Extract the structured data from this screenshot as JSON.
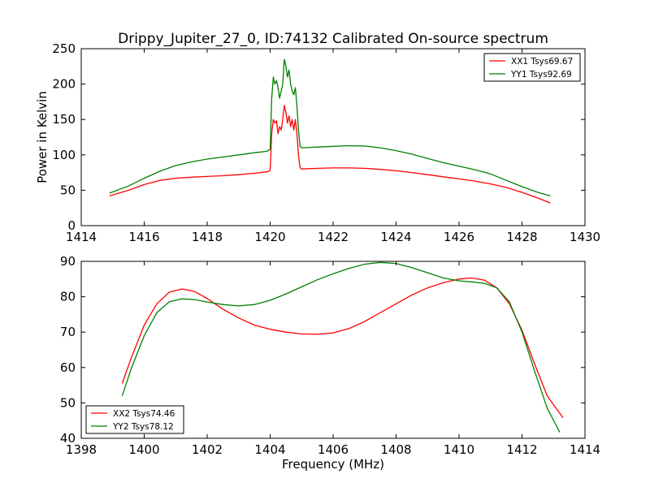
{
  "figure": {
    "title": "Drippy_Jupiter_27_0, ID:74132 Calibrated On-source spectrum"
  },
  "chart_data": [
    {
      "type": "line",
      "title": "Drippy_Jupiter_27_0, ID:74132 Calibrated On-source spectrum",
      "xlabel": "",
      "ylabel": "Power in Kelvin",
      "xlim": [
        1414,
        1430
      ],
      "ylim": [
        0,
        250
      ],
      "xticks": [
        1414,
        1416,
        1418,
        1420,
        1422,
        1424,
        1426,
        1428,
        1430
      ],
      "yticks": [
        0,
        50,
        100,
        150,
        200,
        250
      ],
      "grid": false,
      "legend_position": "top-right",
      "series": [
        {
          "name": "XX1 Tsys69.67",
          "color": "#ff0000",
          "x": [
            1414.9,
            1415.5,
            1416.0,
            1416.5,
            1417.0,
            1417.5,
            1418.0,
            1418.5,
            1419.0,
            1419.5,
            1419.9,
            1420.0,
            1420.05,
            1420.1,
            1420.15,
            1420.2,
            1420.25,
            1420.3,
            1420.35,
            1420.4,
            1420.45,
            1420.5,
            1420.55,
            1420.6,
            1420.65,
            1420.7,
            1420.75,
            1420.8,
            1420.85,
            1420.9,
            1420.95,
            1421.0,
            1421.5,
            1422.0,
            1422.5,
            1423.0,
            1423.5,
            1424.0,
            1424.5,
            1425.0,
            1425.5,
            1426.0,
            1426.5,
            1427.0,
            1427.5,
            1428.0,
            1428.5,
            1428.9
          ],
          "values": [
            42,
            50,
            58,
            64,
            67,
            68.5,
            69.5,
            70.5,
            72,
            74,
            76,
            78,
            130,
            150,
            145,
            148,
            130,
            140,
            135,
            150,
            170,
            160,
            145,
            155,
            140,
            150,
            135,
            150,
            130,
            100,
            82,
            80,
            81,
            81.5,
            81.5,
            81,
            79.5,
            77.5,
            75,
            72,
            69,
            66,
            63,
            59,
            54,
            47,
            39,
            32
          ]
        },
        {
          "name": "YY1 Tsys92.69",
          "color": "#008000",
          "x": [
            1414.9,
            1415.5,
            1416.0,
            1416.5,
            1417.0,
            1417.5,
            1418.0,
            1418.5,
            1419.0,
            1419.5,
            1419.9,
            1420.0,
            1420.05,
            1420.1,
            1420.15,
            1420.2,
            1420.25,
            1420.3,
            1420.35,
            1420.4,
            1420.45,
            1420.5,
            1420.55,
            1420.6,
            1420.65,
            1420.7,
            1420.75,
            1420.8,
            1420.85,
            1420.9,
            1420.95,
            1421.0,
            1421.5,
            1422.0,
            1422.5,
            1423.0,
            1423.5,
            1424.0,
            1424.5,
            1425.0,
            1425.5,
            1426.0,
            1426.5,
            1427.0,
            1427.5,
            1428.0,
            1428.5,
            1428.9
          ],
          "values": [
            46,
            56,
            67,
            77,
            85,
            90,
            94,
            97,
            100,
            103,
            105,
            108,
            180,
            210,
            200,
            205,
            195,
            180,
            190,
            200,
            235,
            225,
            210,
            220,
            200,
            190,
            185,
            195,
            170,
            135,
            112,
            110,
            111,
            112,
            113,
            112.5,
            110,
            106,
            101,
            95,
            89,
            84,
            79,
            73,
            64,
            55,
            47,
            42
          ]
        }
      ]
    },
    {
      "type": "line",
      "title": "",
      "xlabel": "Frequency (MHz)",
      "ylabel": "",
      "xlim": [
        1398,
        1414
      ],
      "ylim": [
        40,
        90
      ],
      "xticks": [
        1398,
        1400,
        1402,
        1404,
        1406,
        1408,
        1410,
        1412,
        1414
      ],
      "yticks": [
        40,
        50,
        60,
        70,
        80,
        90
      ],
      "grid": false,
      "legend_position": "bottom-left",
      "series": [
        {
          "name": "XX2 Tsys74.46",
          "color": "#ff0000",
          "x": [
            1399.3,
            1399.6,
            1400.0,
            1400.4,
            1400.8,
            1401.2,
            1401.6,
            1402.0,
            1402.5,
            1403.0,
            1403.5,
            1404.0,
            1404.5,
            1405.0,
            1405.5,
            1406.0,
            1406.5,
            1407.0,
            1407.5,
            1408.0,
            1408.5,
            1409.0,
            1409.5,
            1410.0,
            1410.4,
            1410.8,
            1411.2,
            1411.6,
            1412.0,
            1412.4,
            1412.8,
            1413.3
          ],
          "values": [
            55.5,
            63,
            72,
            78,
            81.3,
            82.2,
            81.5,
            79.5,
            76.5,
            74,
            72,
            70.8,
            70,
            69.5,
            69.4,
            69.8,
            71,
            73,
            75.5,
            78,
            80.5,
            82.5,
            84,
            85,
            85.3,
            84.7,
            82.5,
            78,
            70.5,
            61,
            52,
            45.8
          ]
        },
        {
          "name": "YY2 Tsys78.12",
          "color": "#008000",
          "x": [
            1399.3,
            1399.6,
            1400.0,
            1400.4,
            1400.8,
            1401.2,
            1401.6,
            1402.0,
            1402.5,
            1403.0,
            1403.5,
            1404.0,
            1404.5,
            1405.0,
            1405.5,
            1406.0,
            1406.5,
            1407.0,
            1407.5,
            1408.0,
            1408.5,
            1409.0,
            1409.5,
            1410.0,
            1410.4,
            1410.8,
            1411.2,
            1411.6,
            1412.0,
            1412.4,
            1412.8,
            1413.2
          ],
          "values": [
            52,
            60,
            69,
            75.5,
            78.6,
            79.4,
            79.2,
            78.5,
            77.8,
            77.4,
            77.8,
            79,
            80.8,
            82.8,
            84.8,
            86.5,
            88,
            89.2,
            89.7,
            89.4,
            88.2,
            86.8,
            85.3,
            84.5,
            84.2,
            83.8,
            82.5,
            78.5,
            70,
            59,
            48.5,
            41.7
          ]
        }
      ]
    }
  ]
}
